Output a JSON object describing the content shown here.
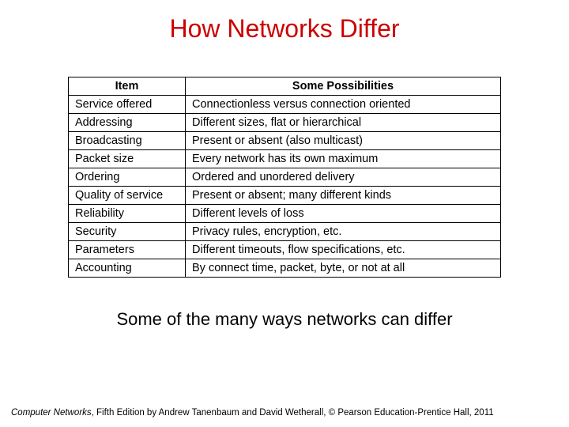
{
  "title": {
    "text": "How Networks Differ",
    "color": "#cc0000"
  },
  "table": {
    "columns": [
      "Item",
      "Some Possibilities"
    ],
    "rows": [
      [
        "Service offered",
        "Connectionless versus connection oriented"
      ],
      [
        "Addressing",
        "Different sizes, flat or hierarchical"
      ],
      [
        "Broadcasting",
        "Present or absent (also multicast)"
      ],
      [
        "Packet size",
        "Every network has its own maximum"
      ],
      [
        "Ordering",
        "Ordered and unordered delivery"
      ],
      [
        "Quality of service",
        "Present or absent; many different kinds"
      ],
      [
        "Reliability",
        "Different levels of loss"
      ],
      [
        "Security",
        "Privacy rules, encryption, etc."
      ],
      [
        "Parameters",
        "Different timeouts, flow specifications, etc."
      ],
      [
        "Accounting",
        "By connect time, packet, byte, or not at all"
      ]
    ]
  },
  "caption": "Some of the many ways networks can differ",
  "footer": {
    "book": "Computer Networks",
    "rest": ", Fifth Edition by Andrew Tanenbaum and David Wetherall, © Pearson Education-Prentice Hall, 2011"
  }
}
